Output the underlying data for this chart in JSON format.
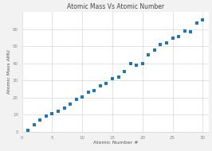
{
  "title": "Atomic Mass Vs Atomic Number",
  "xlabel": "Atomic Number #",
  "ylabel": "Atomic Mass AMU",
  "background_color": "#f2f2f2",
  "plot_bg_color": "#ffffff",
  "grid_color": "#d8d8d8",
  "dot_color": "#1f77b4",
  "dot_size": 5,
  "atomic_numbers": [
    1,
    2,
    3,
    4,
    5,
    6,
    7,
    8,
    9,
    10,
    11,
    12,
    13,
    14,
    15,
    16,
    17,
    18,
    19,
    20,
    21,
    22,
    23,
    24,
    25,
    26,
    27,
    28,
    29,
    30
  ],
  "atomic_masses": [
    1.008,
    4.003,
    6.941,
    9.012,
    10.811,
    12.011,
    14.007,
    15.999,
    18.998,
    20.18,
    22.99,
    24.305,
    26.982,
    28.086,
    30.974,
    32.065,
    35.453,
    39.948,
    39.098,
    40.078,
    44.956,
    47.867,
    50.942,
    51.996,
    54.938,
    55.845,
    58.933,
    58.693,
    63.546,
    65.38
  ],
  "xlim": [
    0,
    31
  ],
  "ylim": [
    0,
    70
  ],
  "xticks": [
    0,
    5,
    10,
    15,
    20,
    25,
    30
  ],
  "yticks": [
    0,
    10,
    20,
    30,
    40,
    50,
    60
  ],
  "title_fontsize": 5.5,
  "label_fontsize": 4.5,
  "tick_fontsize": 4.0,
  "title_color": "#444444",
  "label_color": "#555555",
  "tick_color": "#888888"
}
